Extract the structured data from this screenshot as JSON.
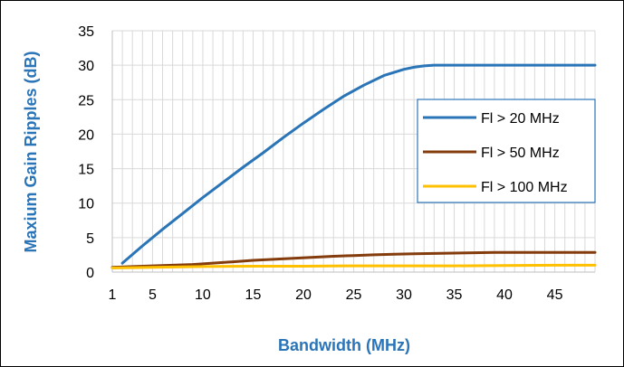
{
  "chart_data": {
    "type": "line",
    "title": "",
    "xlabel": "Bandwidth (MHz)",
    "ylabel": "Maxium Gain Ripples (dB)",
    "xlim": [
      1,
      49
    ],
    "ylim": [
      0,
      35
    ],
    "x_ticks": [
      "1",
      "5",
      "10",
      "15",
      "20",
      "25",
      "30",
      "35",
      "40",
      "45"
    ],
    "y_ticks": [
      "0",
      "5",
      "10",
      "15",
      "20",
      "25",
      "30",
      "35"
    ],
    "grid": true,
    "legend_placement": "right",
    "series": [
      {
        "name": "Fl > 20 MHz",
        "color": "#2a74b8",
        "points": [
          [
            2,
            1.3
          ],
          [
            4,
            3.8
          ],
          [
            6,
            6.2
          ],
          [
            8,
            8.5
          ],
          [
            10,
            10.8
          ],
          [
            12,
            13
          ],
          [
            14,
            15.2
          ],
          [
            16,
            17.3
          ],
          [
            18,
            19.5
          ],
          [
            20,
            21.6
          ],
          [
            22,
            23.6
          ],
          [
            24,
            25.5
          ],
          [
            26,
            27.1
          ],
          [
            28,
            28.5
          ],
          [
            30,
            29.4
          ],
          [
            31,
            29.7
          ],
          [
            32,
            29.9
          ],
          [
            33,
            30
          ],
          [
            35,
            30
          ],
          [
            40,
            30
          ],
          [
            45,
            30
          ],
          [
            49,
            30
          ]
        ]
      },
      {
        "name": "Fl > 50 MHz",
        "color": "#843c0c",
        "points": [
          [
            1,
            0.7
          ],
          [
            3,
            0.8
          ],
          [
            5,
            0.9
          ],
          [
            7,
            1.0
          ],
          [
            9,
            1.1
          ],
          [
            11,
            1.3
          ],
          [
            13,
            1.5
          ],
          [
            15,
            1.7
          ],
          [
            17,
            1.85
          ],
          [
            19,
            2.0
          ],
          [
            21,
            2.15
          ],
          [
            23,
            2.3
          ],
          [
            25,
            2.4
          ],
          [
            27,
            2.5
          ],
          [
            29,
            2.6
          ],
          [
            31,
            2.65
          ],
          [
            33,
            2.7
          ],
          [
            35,
            2.75
          ],
          [
            37,
            2.8
          ],
          [
            39,
            2.85
          ],
          [
            45,
            2.85
          ],
          [
            49,
            2.85
          ]
        ]
      },
      {
        "name": "Fl > 100 MHz",
        "color": "#ffc000",
        "points": [
          [
            1,
            0.6
          ],
          [
            5,
            0.7
          ],
          [
            10,
            0.8
          ],
          [
            15,
            0.85
          ],
          [
            20,
            0.85
          ],
          [
            25,
            0.9
          ],
          [
            30,
            0.9
          ],
          [
            35,
            0.9
          ],
          [
            40,
            0.95
          ],
          [
            45,
            1.0
          ],
          [
            49,
            1.0
          ]
        ]
      }
    ]
  }
}
